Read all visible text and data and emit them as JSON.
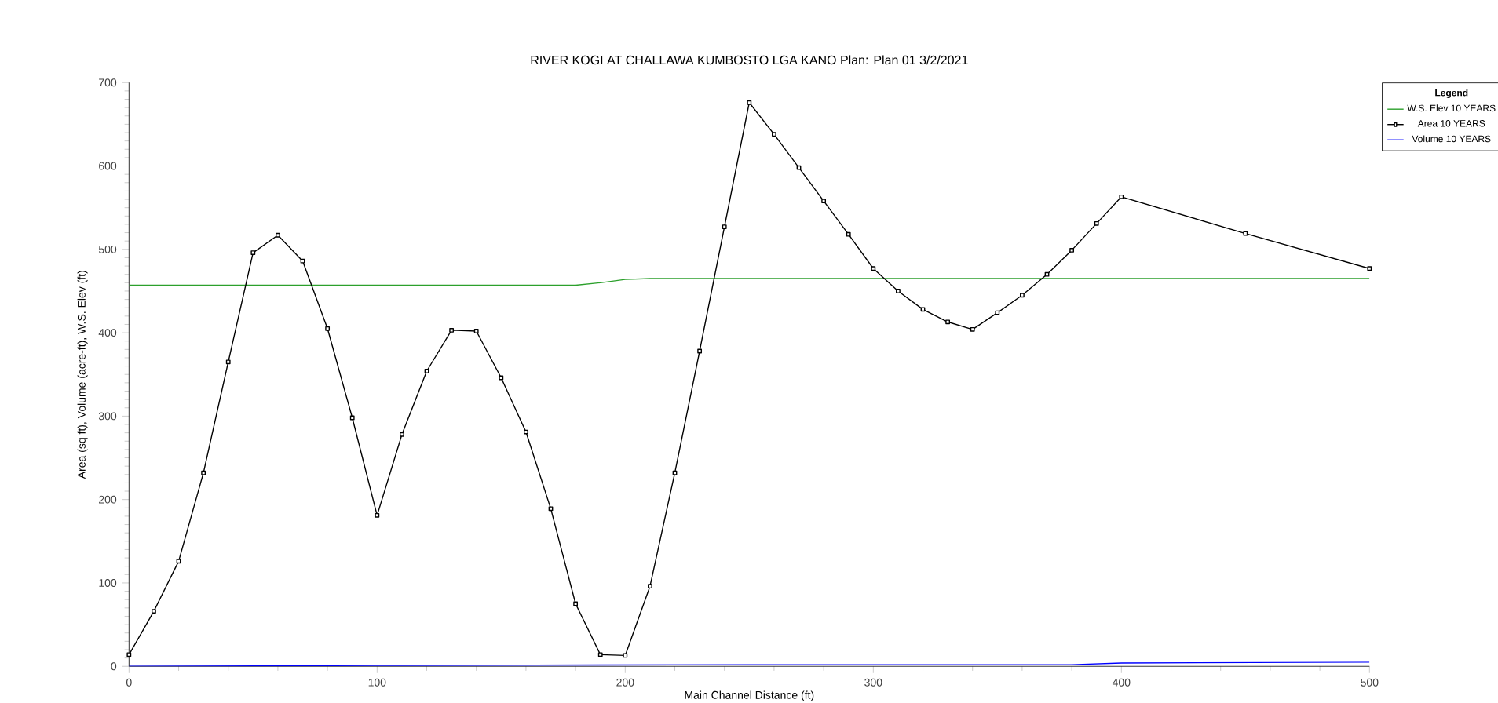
{
  "chart_data": {
    "type": "line",
    "title": "RIVER KOGI AT CHALLAWA KUMBOSTO LGA KANO Plan: Plan 01 3/2/2021",
    "xlabel": "Main Channel Distance (ft)",
    "ylabel": "Area (sq ft), Volume (acre-ft), W.S. Elev (ft)",
    "legend_title": "Legend",
    "legend": "top right",
    "line_style": "solid",
    "xlim": [
      0,
      500
    ],
    "xticks": [
      0,
      100,
      200,
      300,
      400,
      500
    ],
    "ylim": [
      0,
      700
    ],
    "yticks": [
      0,
      100,
      200,
      300,
      400,
      500,
      600,
      700
    ],
    "series": [
      {
        "name": "W.S. Elev 10 YEARS",
        "color": "#2ca02c",
        "marker": "none",
        "x": [
          0,
          50,
          100,
          150,
          180,
          190,
          200,
          210,
          250,
          300,
          400,
          500
        ],
        "values": [
          457,
          457,
          457,
          457,
          457,
          460,
          464,
          465,
          465,
          465,
          465,
          465
        ]
      },
      {
        "name": "Area 10 YEARS",
        "color": "#000000",
        "marker": "square",
        "x": [
          0,
          10,
          20,
          30,
          40,
          50,
          60,
          70,
          80,
          90,
          100,
          110,
          120,
          130,
          140,
          150,
          160,
          170,
          180,
          190,
          200,
          210,
          220,
          230,
          240,
          250,
          260,
          270,
          280,
          290,
          300,
          310,
          320,
          330,
          340,
          350,
          360,
          370,
          380,
          390,
          400,
          450,
          500
        ],
        "values": [
          14,
          66,
          126,
          232,
          365,
          496,
          517,
          486,
          405,
          298,
          181,
          278,
          354,
          403,
          402,
          346,
          281,
          189,
          75,
          14,
          13,
          96,
          232,
          378,
          527,
          676,
          638,
          598,
          558,
          518,
          477,
          450,
          428,
          413,
          404,
          424,
          445,
          470,
          499,
          531,
          563,
          519,
          477
        ]
      },
      {
        "name": "Volume 10 YEARS",
        "color": "#0000ff",
        "marker": "none",
        "x": [
          0,
          100,
          250,
          380,
          400,
          500
        ],
        "values": [
          0,
          1,
          2,
          2,
          4,
          5
        ]
      }
    ]
  }
}
